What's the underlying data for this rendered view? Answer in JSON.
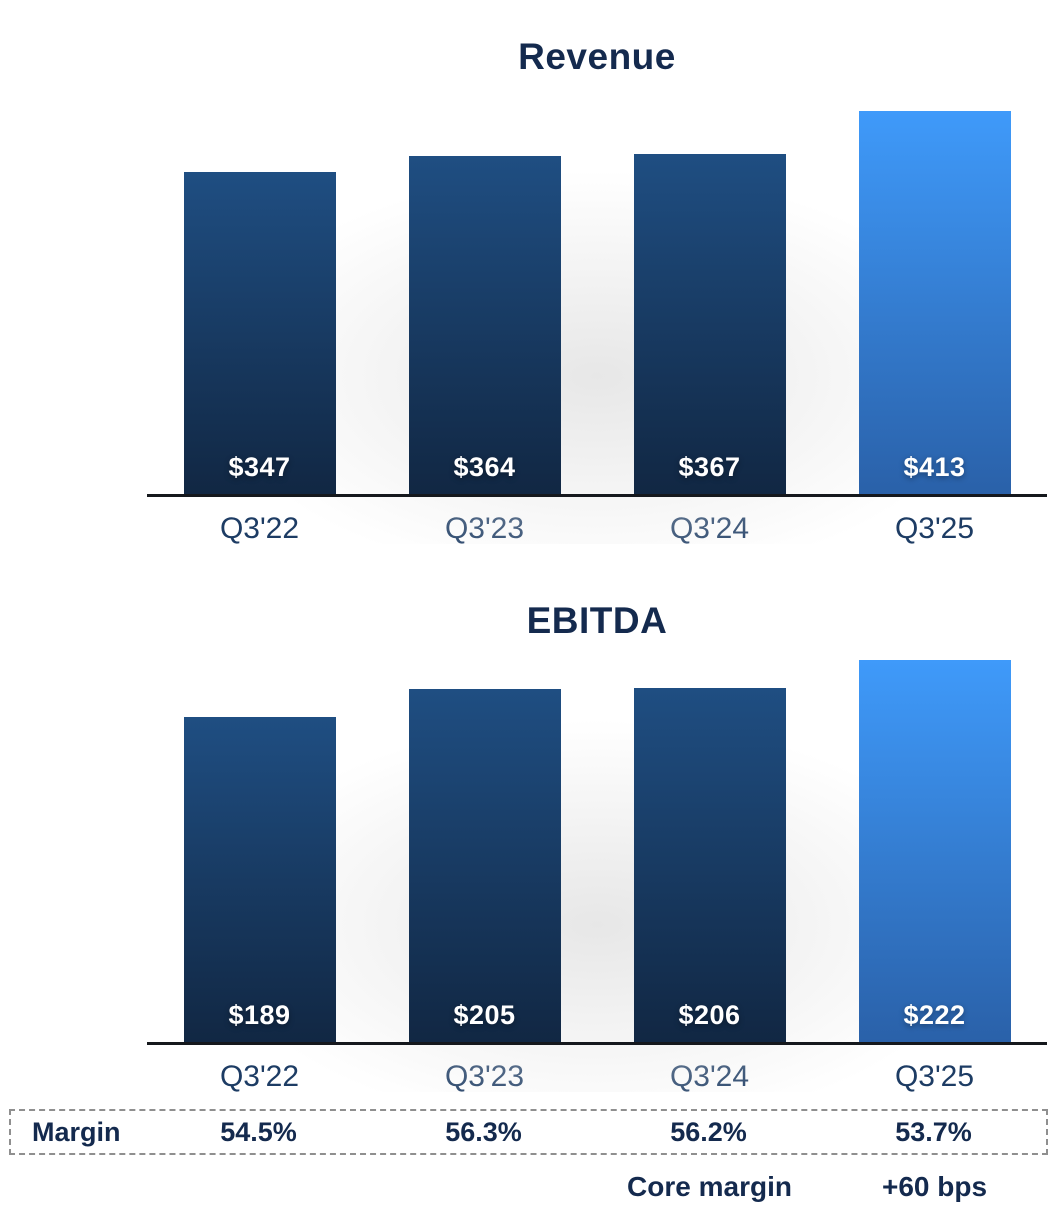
{
  "chart_data": [
    {
      "type": "bar",
      "title": "Revenue",
      "categories": [
        "Q3'22",
        "Q3'23",
        "Q3'24",
        "Q3'25"
      ],
      "values": [
        347,
        364,
        367,
        413
      ],
      "value_labels": [
        "$347",
        "$364",
        "$367",
        "$413"
      ],
      "highlight_index": 3,
      "ylim": [
        0,
        413
      ],
      "grid": false,
      "legend": false
    },
    {
      "type": "bar",
      "title": "EBITDA",
      "categories": [
        "Q3'22",
        "Q3'23",
        "Q3'24",
        "Q3'25"
      ],
      "values": [
        189,
        205,
        206,
        222
      ],
      "value_labels": [
        "$189",
        "$205",
        "$206",
        "$222"
      ],
      "highlight_index": 3,
      "ylim": [
        0,
        222
      ],
      "grid": false,
      "legend": false
    },
    {
      "type": "table",
      "row_label": "Margin",
      "columns": [
        "Q3'22",
        "Q3'23",
        "Q3'24",
        "Q3'25"
      ],
      "values": [
        "54.5%",
        "56.3%",
        "56.2%",
        "53.7%"
      ],
      "annotations": [
        {
          "text": "Core margin",
          "column": "Q3'24"
        },
        {
          "text": "+60 bps",
          "column": "Q3'25"
        }
      ]
    }
  ],
  "footnote": {
    "core_margin_label": "Core margin",
    "delta_label": "+60 bps"
  },
  "colors": {
    "bar_dark_top": "#1f4e82",
    "bar_dark_bottom": "#112743",
    "bar_highlight_top": "#3f9afa",
    "bar_highlight_bottom": "#2a61a9",
    "title_text": "#142a4e",
    "category_text": "#1d3c64",
    "value_label_text": "#ffffff",
    "axis_line": "#15181d",
    "dashed_border": "#8f8f8f"
  }
}
